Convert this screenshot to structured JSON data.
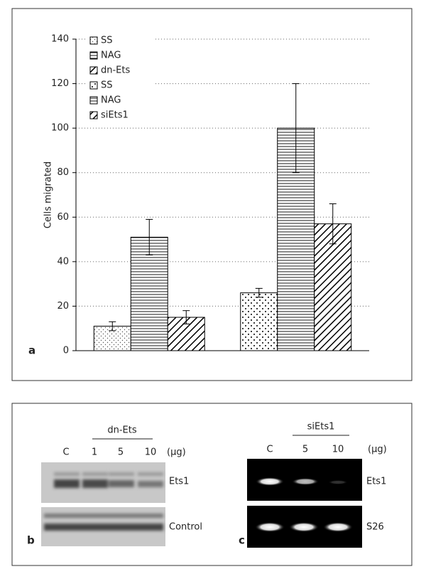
{
  "chart_data": {
    "type": "bar",
    "y_label": "Cells migrated",
    "panel_label": "a",
    "categories": [
      null,
      null
    ],
    "series": [
      {
        "name": "SS",
        "color": "#000000",
        "pattern": "dots",
        "values": [
          11,
          null
        ],
        "errors": [
          2,
          null
        ]
      },
      {
        "name": "NAG",
        "color": "#000000",
        "pattern": "hlines",
        "values": [
          51,
          null
        ],
        "errors": [
          8,
          null
        ]
      },
      {
        "name": "dn-Ets",
        "color": "#000000",
        "pattern": "diagonal",
        "values": [
          15,
          null
        ],
        "errors": [
          3,
          null
        ]
      },
      {
        "name": "SS",
        "color": "#000000",
        "pattern": "dense-dots",
        "values": [
          null,
          26
        ],
        "errors": [
          null,
          2
        ]
      },
      {
        "name": "NAG",
        "color": "#000000",
        "pattern": "hlines",
        "values": [
          null,
          100
        ],
        "errors": [
          null,
          20
        ]
      },
      {
        "name": "siEts1",
        "color": "#000000",
        "pattern": "diagonal",
        "values": [
          null,
          57
        ],
        "errors": [
          null,
          9
        ]
      }
    ],
    "ylim": [
      0,
      140
    ],
    "yticks": [
      0,
      20,
      40,
      60,
      80,
      100,
      120,
      140
    ],
    "grid": true,
    "legend": "top-left"
  },
  "panel_b": {
    "label": "b",
    "treatment": "dn-Ets",
    "lanes": [
      "C",
      "1",
      "5",
      "10"
    ],
    "unit": "(μg)",
    "rows": [
      "Ets1",
      "Control"
    ]
  },
  "panel_c": {
    "label": "c",
    "treatment": "siEts1",
    "lanes": [
      "C",
      "5",
      "10"
    ],
    "unit": "(μg)",
    "rows": [
      "Ets1",
      "S26"
    ]
  }
}
